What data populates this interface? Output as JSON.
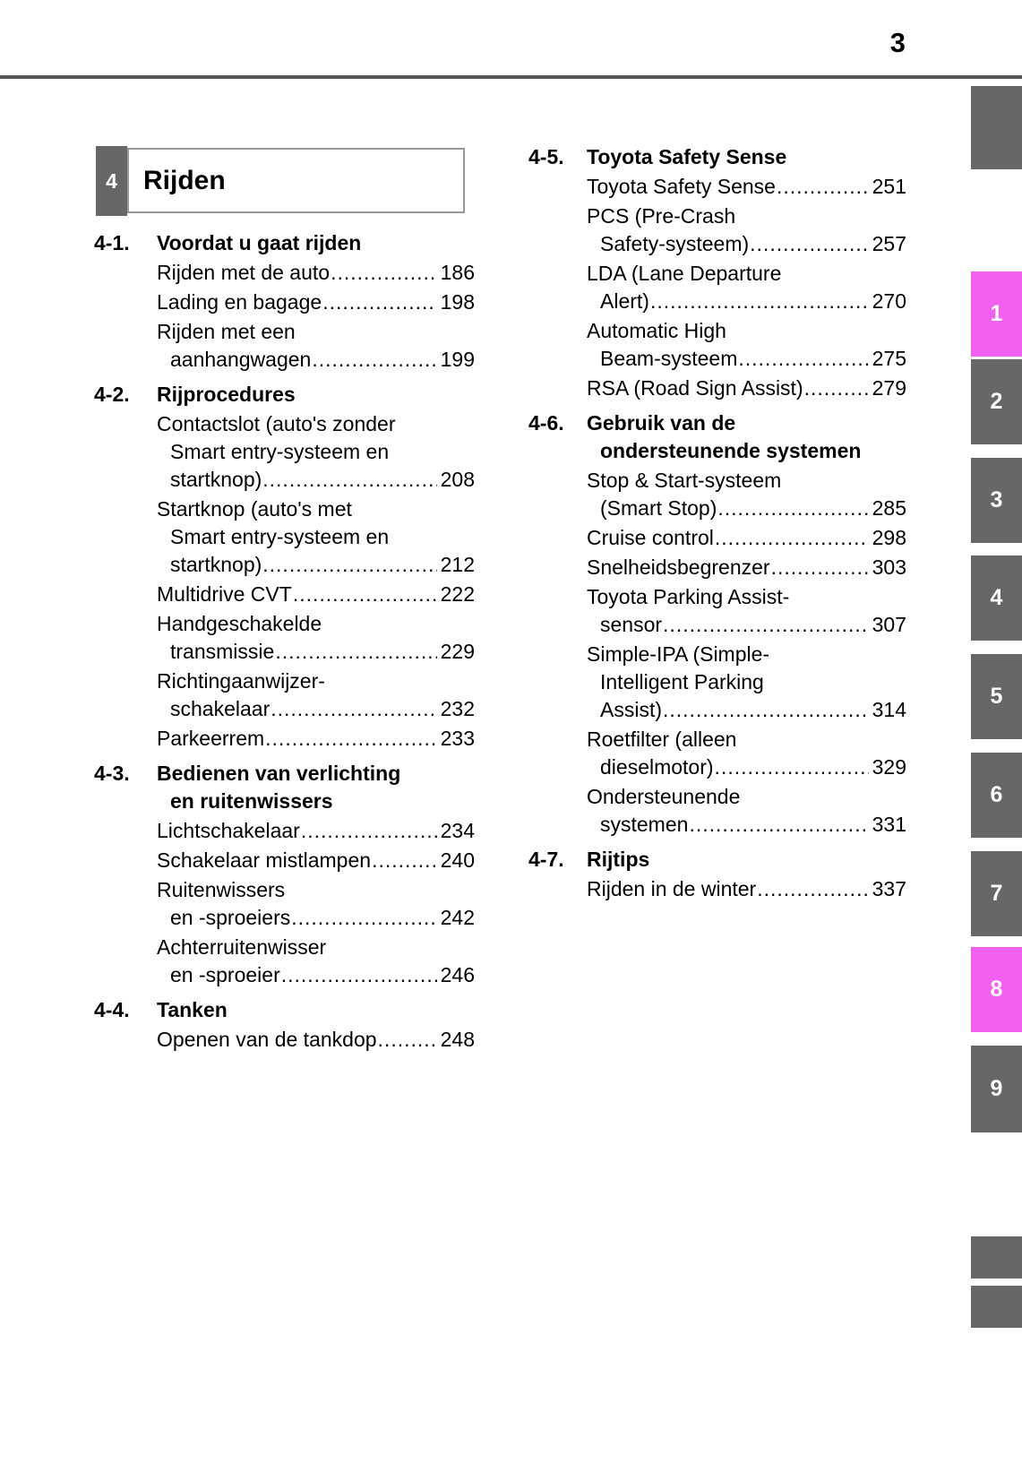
{
  "page": {
    "number": "3"
  },
  "chapter": {
    "tab_number": "4",
    "title": "Rijden"
  },
  "toc": {
    "columns": [
      {
        "name": "left",
        "sections": [
          {
            "number": "4-1.",
            "title_lines": [
              "Voordat u gaat rijden"
            ],
            "entries": [
              {
                "lines": [
                  "Rijden met de auto"
                ],
                "page": "186"
              },
              {
                "lines": [
                  "Lading en bagage"
                ],
                "page": "198"
              },
              {
                "lines": [
                  "Rijden met een",
                  "aanhangwagen"
                ],
                "page": "199"
              }
            ]
          },
          {
            "number": "4-2.",
            "title_lines": [
              "Rijprocedures"
            ],
            "entries": [
              {
                "lines": [
                  "Contactslot (auto's zonder",
                  "Smart entry-systeem en",
                  "startknop)"
                ],
                "page": "208"
              },
              {
                "lines": [
                  "Startknop (auto's met",
                  "Smart entry-systeem en",
                  "startknop)"
                ],
                "page": "212"
              },
              {
                "lines": [
                  "Multidrive CVT"
                ],
                "page": "222"
              },
              {
                "lines": [
                  "Handgeschakelde",
                  "transmissie"
                ],
                "page": "229"
              },
              {
                "lines": [
                  "Richtingaanwijzer-",
                  "schakelaar"
                ],
                "page": "232"
              },
              {
                "lines": [
                  "Parkeerrem"
                ],
                "page": "233"
              }
            ]
          },
          {
            "number": "4-3.",
            "title_lines": [
              "Bedienen van verlichting",
              "en ruitenwissers"
            ],
            "entries": [
              {
                "lines": [
                  "Lichtschakelaar"
                ],
                "page": "234"
              },
              {
                "lines": [
                  "Schakelaar mistlampen"
                ],
                "page": "240"
              },
              {
                "lines": [
                  "Ruitenwissers",
                  "en -sproeiers"
                ],
                "page": "242"
              },
              {
                "lines": [
                  "Achterruitenwisser",
                  "en -sproeier"
                ],
                "page": "246"
              }
            ]
          },
          {
            "number": "4-4.",
            "title_lines": [
              "Tanken"
            ],
            "entries": [
              {
                "lines": [
                  "Openen van de tankdop"
                ],
                "page": "248"
              }
            ]
          }
        ]
      },
      {
        "name": "right",
        "sections": [
          {
            "number": "4-5.",
            "title_lines": [
              "Toyota Safety Sense"
            ],
            "entries": [
              {
                "lines": [
                  "Toyota Safety Sense"
                ],
                "page": "251"
              },
              {
                "lines": [
                  "PCS (Pre-Crash",
                  "Safety-systeem)"
                ],
                "page": "257"
              },
              {
                "lines": [
                  "LDA (Lane Departure",
                  "Alert)"
                ],
                "page": "270"
              },
              {
                "lines": [
                  "Automatic High",
                  "Beam-systeem"
                ],
                "page": "275"
              },
              {
                "lines": [
                  "RSA (Road Sign Assist)"
                ],
                "page": "279"
              }
            ]
          },
          {
            "number": "4-6.",
            "title_lines": [
              "Gebruik van de",
              "ondersteunende systemen"
            ],
            "entries": [
              {
                "lines": [
                  "Stop & Start-systeem",
                  "(Smart Stop)"
                ],
                "page": "285"
              },
              {
                "lines": [
                  "Cruise control"
                ],
                "page": "298"
              },
              {
                "lines": [
                  "Snelheidsbegrenzer"
                ],
                "page": "303"
              },
              {
                "lines": [
                  "Toyota Parking Assist-",
                  "sensor"
                ],
                "page": "307"
              },
              {
                "lines": [
                  "Simple-IPA (Simple-",
                  "Intelligent Parking",
                  "Assist)"
                ],
                "page": "314"
              },
              {
                "lines": [
                  "Roetfilter (alleen",
                  "dieselmotor)"
                ],
                "page": "329"
              },
              {
                "lines": [
                  "Ondersteunende",
                  "systemen"
                ],
                "page": "331"
              }
            ]
          },
          {
            "number": "4-7.",
            "title_lines": [
              "Rijtips"
            ],
            "entries": [
              {
                "lines": [
                  "Rijden in de winter"
                ],
                "page": "337"
              }
            ]
          }
        ]
      }
    ]
  },
  "sidebar": {
    "tabs": [
      {
        "label": "",
        "highlighted": false
      },
      {
        "label": "1",
        "highlighted": true
      },
      {
        "label": "2",
        "highlighted": false
      },
      {
        "label": "3",
        "highlighted": false
      },
      {
        "label": "4",
        "highlighted": false
      },
      {
        "label": "5",
        "highlighted": false
      },
      {
        "label": "6",
        "highlighted": false
      },
      {
        "label": "7",
        "highlighted": false
      },
      {
        "label": "8",
        "highlighted": true
      },
      {
        "label": "9",
        "highlighted": false
      }
    ],
    "bottom_tabs": [
      {
        "label": ""
      },
      {
        "label": ""
      }
    ],
    "colors": {
      "tab_gray": "#676767",
      "tab_highlight": "#f160ee"
    }
  },
  "colors": {
    "rule": "#55565a",
    "box_border": "#999999",
    "text": "#000000"
  }
}
